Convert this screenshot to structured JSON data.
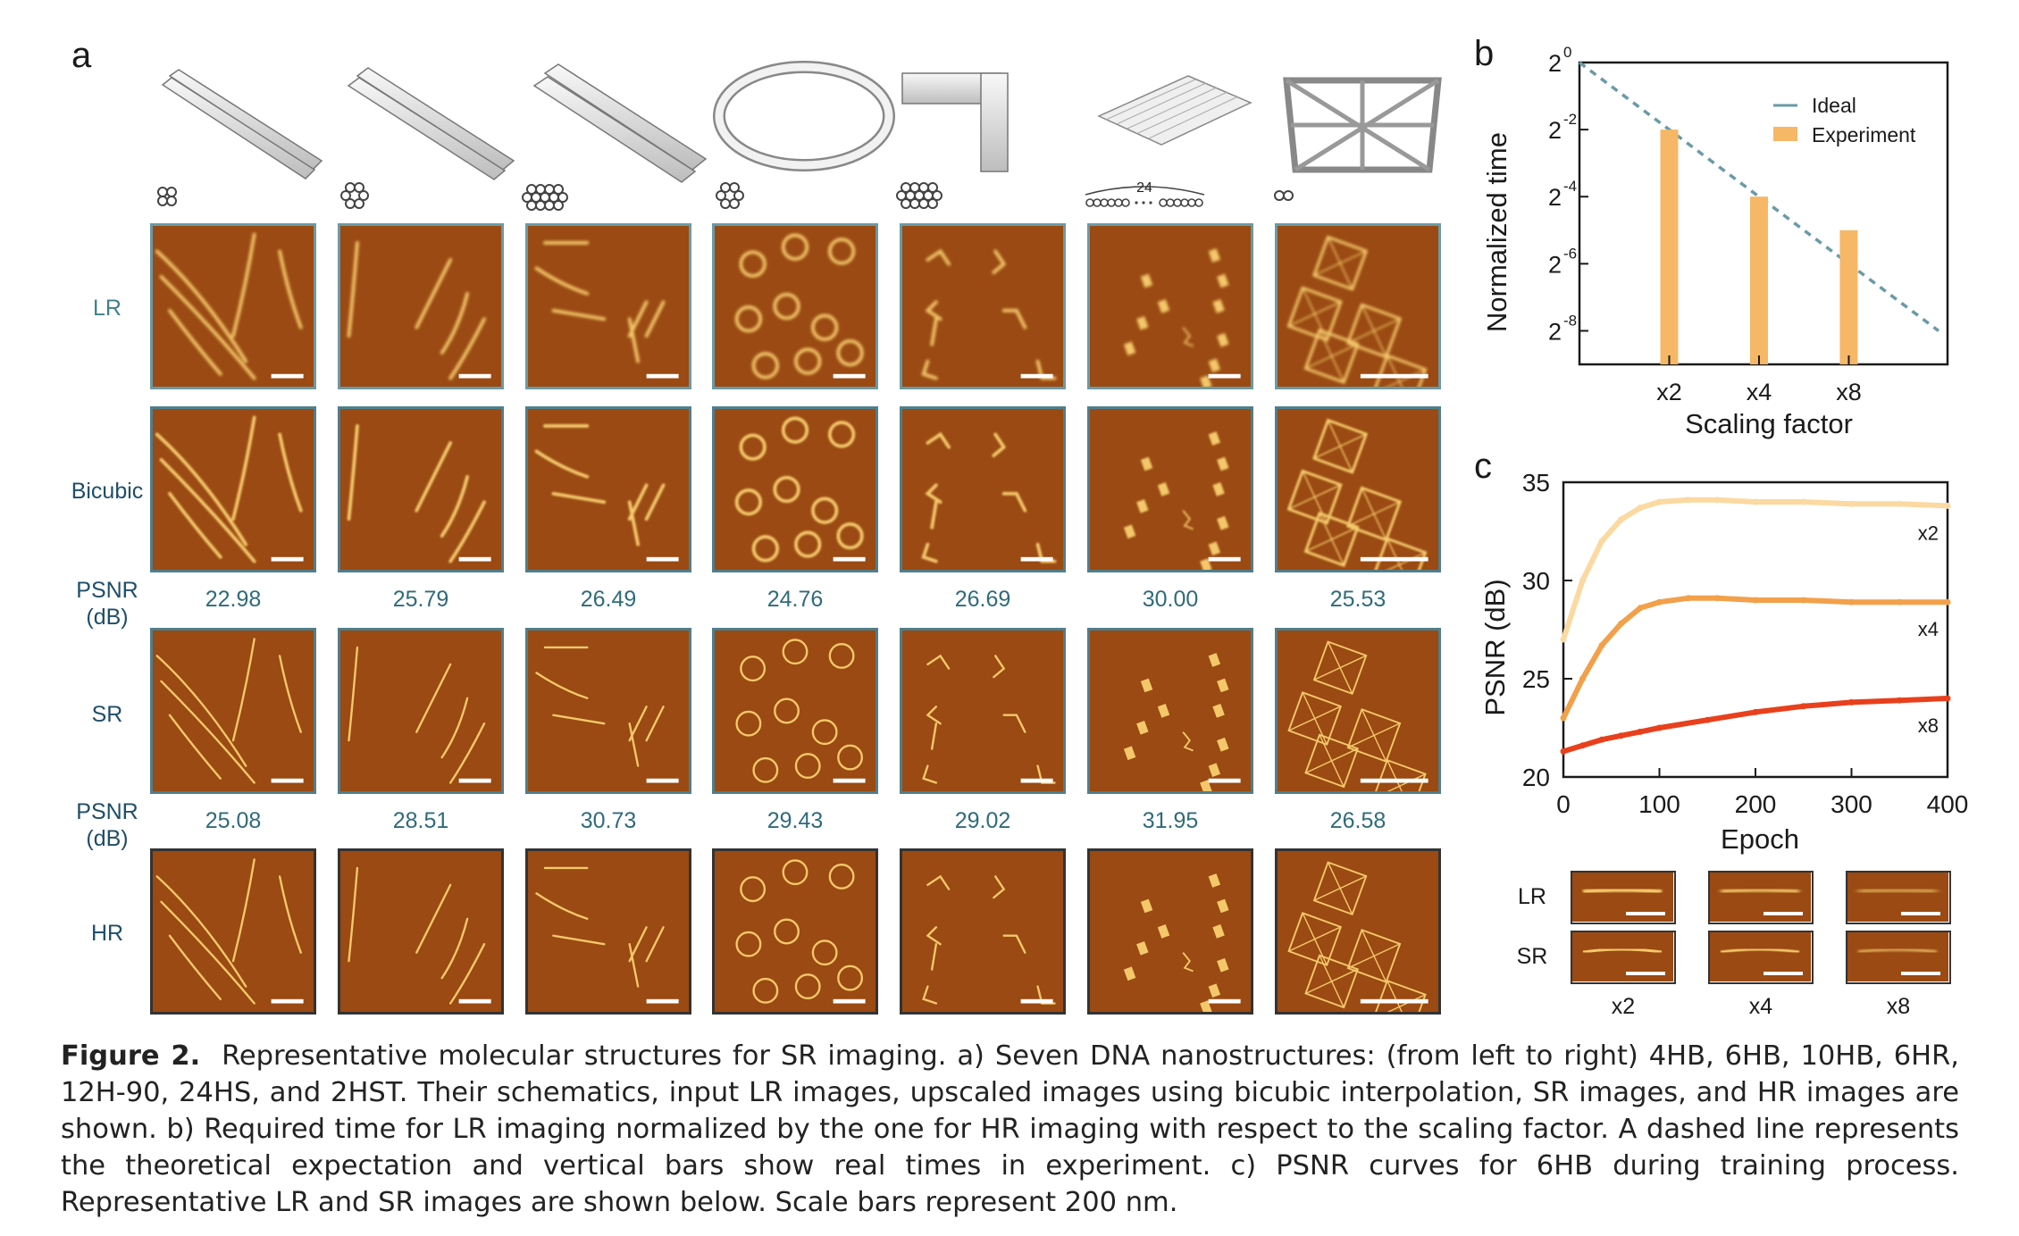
{
  "panels": {
    "a": "a",
    "b": "b",
    "c": "c"
  },
  "structures": [
    "4HB",
    "6HB",
    "10HB",
    "6HR",
    "12H-90",
    "24HS",
    "2HST"
  ],
  "schematic_count_label": "24",
  "row_labels": {
    "lr": "LR",
    "bicubic": "Bicubic",
    "psnr1": [
      "PSNR",
      "(dB)"
    ],
    "sr": "SR",
    "psnr2": [
      "PSNR",
      "(dB)"
    ],
    "hr": "HR"
  },
  "psnr_bicubic": [
    "22.98",
    "25.79",
    "26.49",
    "24.76",
    "26.69",
    "30.00",
    "25.53"
  ],
  "psnr_sr": [
    "25.08",
    "28.51",
    "30.73",
    "29.43",
    "29.02",
    "31.95",
    "26.58"
  ],
  "colors": {
    "afm_bg": "#9a4a12",
    "afm_feature": "#f4c86a",
    "border_lr": "#6a9aa6",
    "border_hr": "#333333",
    "ideal_line": "#6a9aa6",
    "bar": "#f6b766",
    "x2_curve": "#fbd9a0",
    "x4_curve": "#f2a04a",
    "x8_curve": "#e8401c"
  },
  "chart_data": [
    {
      "type": "bar",
      "panel": "b",
      "xlabel": "Scaling factor",
      "ylabel": "Normalized time",
      "y_scale": "log2",
      "y_ticks": [
        {
          "base": "2",
          "exp": "0"
        },
        {
          "base": "2",
          "exp": "-2"
        },
        {
          "base": "2",
          "exp": "-4"
        },
        {
          "base": "2",
          "exp": "-6"
        },
        {
          "base": "2",
          "exp": "-8"
        }
      ],
      "ylim_log2": [
        -9,
        0
      ],
      "categories": [
        "x2",
        "x4",
        "x8"
      ],
      "category_x": [
        2,
        4,
        8
      ],
      "series": [
        {
          "name": "Ideal",
          "kind": "dashed-line",
          "points": [
            [
              1,
              0
            ],
            [
              16,
              -8
            ]
          ]
        },
        {
          "name": "Experiment",
          "kind": "bar",
          "values_log2": [
            -2.0,
            -4.0,
            -5.0
          ]
        }
      ],
      "legend_position": "top-right"
    },
    {
      "type": "line",
      "panel": "c",
      "xlabel": "Epoch",
      "ylabel": "PSNR (dB)",
      "xlim": [
        0,
        400
      ],
      "ylim": [
        20,
        35
      ],
      "x_ticks": [
        0,
        100,
        200,
        300,
        400
      ],
      "y_ticks": [
        20,
        25,
        30,
        35
      ],
      "series": [
        {
          "name": "x2",
          "x": [
            0,
            20,
            40,
            60,
            80,
            100,
            130,
            160,
            200,
            250,
            300,
            350,
            400
          ],
          "y": [
            27.0,
            30.0,
            32.0,
            33.1,
            33.7,
            34.0,
            34.1,
            34.1,
            34.0,
            34.0,
            33.9,
            33.9,
            33.8
          ]
        },
        {
          "name": "x4",
          "x": [
            0,
            20,
            40,
            60,
            80,
            100,
            130,
            160,
            200,
            250,
            300,
            350,
            400
          ],
          "y": [
            23.0,
            25.0,
            26.7,
            27.8,
            28.6,
            28.9,
            29.1,
            29.1,
            29.0,
            29.0,
            28.9,
            28.9,
            28.9
          ]
        },
        {
          "name": "x8",
          "x": [
            0,
            20,
            40,
            60,
            80,
            100,
            150,
            200,
            250,
            300,
            350,
            400
          ],
          "y": [
            21.3,
            21.6,
            21.9,
            22.1,
            22.3,
            22.5,
            22.9,
            23.3,
            23.6,
            23.8,
            23.9,
            24.0
          ]
        }
      ]
    }
  ],
  "inset": {
    "rows": [
      "LR",
      "SR"
    ],
    "cols": [
      "x2",
      "x4",
      "x8"
    ]
  },
  "caption": {
    "label": "Figure 2.",
    "text": "Representative molecular structures for SR imaging. a) Seven DNA nanostructures: (from left to right) 4HB, 6HB, 10HB, 6HR, 12H-90, 24HS, and 2HST. Their schematics, input LR images, upscaled images using bicubic interpolation, SR images, and HR images are shown. b) Required time for LR imaging normalized by the one for HR imaging with respect to the scaling factor. A dashed line represents the theoretical expectation and vertical bars show real times in experiment. c) PSNR curves for 6HB during training process. Representative LR and SR images are shown below. Scale bars represent 200 nm."
  }
}
